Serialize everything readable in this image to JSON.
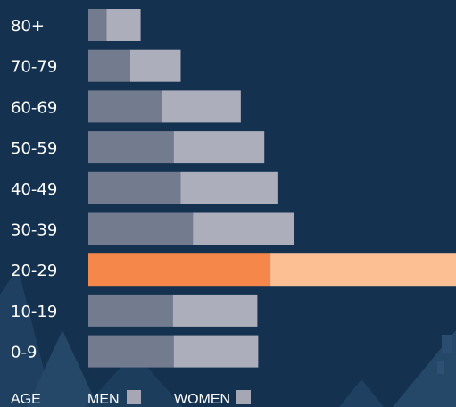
{
  "chart_data": {
    "type": "bar",
    "orientation": "horizontal",
    "stacked": true,
    "categories": [
      "80+",
      "70-79",
      "60-69",
      "50-59",
      "40-49",
      "30-39",
      "20-29",
      "10-19",
      "0-9"
    ],
    "series": [
      {
        "name": "MEN",
        "values": [
          2.1,
          4.8,
          8.4,
          9.8,
          10.6,
          12.0,
          20.9,
          9.7,
          9.8
        ]
      },
      {
        "name": "WOMEN",
        "values": [
          3.9,
          5.8,
          9.1,
          10.4,
          11.1,
          11.6,
          21.3,
          9.7,
          9.7
        ]
      }
    ],
    "highlight_category": "20-29",
    "xlim": [
      0,
      42.2
    ],
    "grid": false,
    "legend": {
      "position": "bottom-left",
      "label": "AGE",
      "entries": [
        "MEN",
        "WOMEN"
      ]
    },
    "colors": {
      "background": "#14324f",
      "men": "#737b8f",
      "women": "#adaebb",
      "men_highlight": "#f5874a",
      "women_highlight": "#fbbf93",
      "legend_swatch": "#a5a8b4"
    }
  }
}
